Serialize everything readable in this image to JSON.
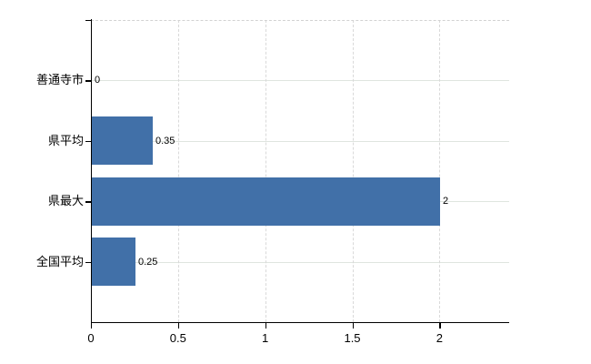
{
  "chart": {
    "background": "#ffffff",
    "bar_color": "#4170a8",
    "h_grid_color": "#dfe5df",
    "v_grid_color": "#d9d9d9",
    "top_border_color": "#d2d2d2",
    "axis_color": "#000000",
    "text_color": "#000000"
  },
  "chart_data": {
    "type": "bar",
    "orientation": "horizontal",
    "title": "",
    "xlabel": "",
    "ylabel": "",
    "categories": [
      "善通寺市",
      "県平均",
      "県最大",
      "全国平均"
    ],
    "values": [
      0,
      0.35,
      2,
      0.25
    ],
    "value_labels": [
      "0",
      "0.35",
      "2",
      "0.25"
    ],
    "x_ticks": [
      0,
      0.5,
      1,
      1.5,
      2
    ],
    "x_tick_labels": [
      "0",
      "0.5",
      "1",
      "1.5",
      "2"
    ],
    "xlim": [
      0,
      2.4
    ],
    "grid": true,
    "legend": false
  }
}
